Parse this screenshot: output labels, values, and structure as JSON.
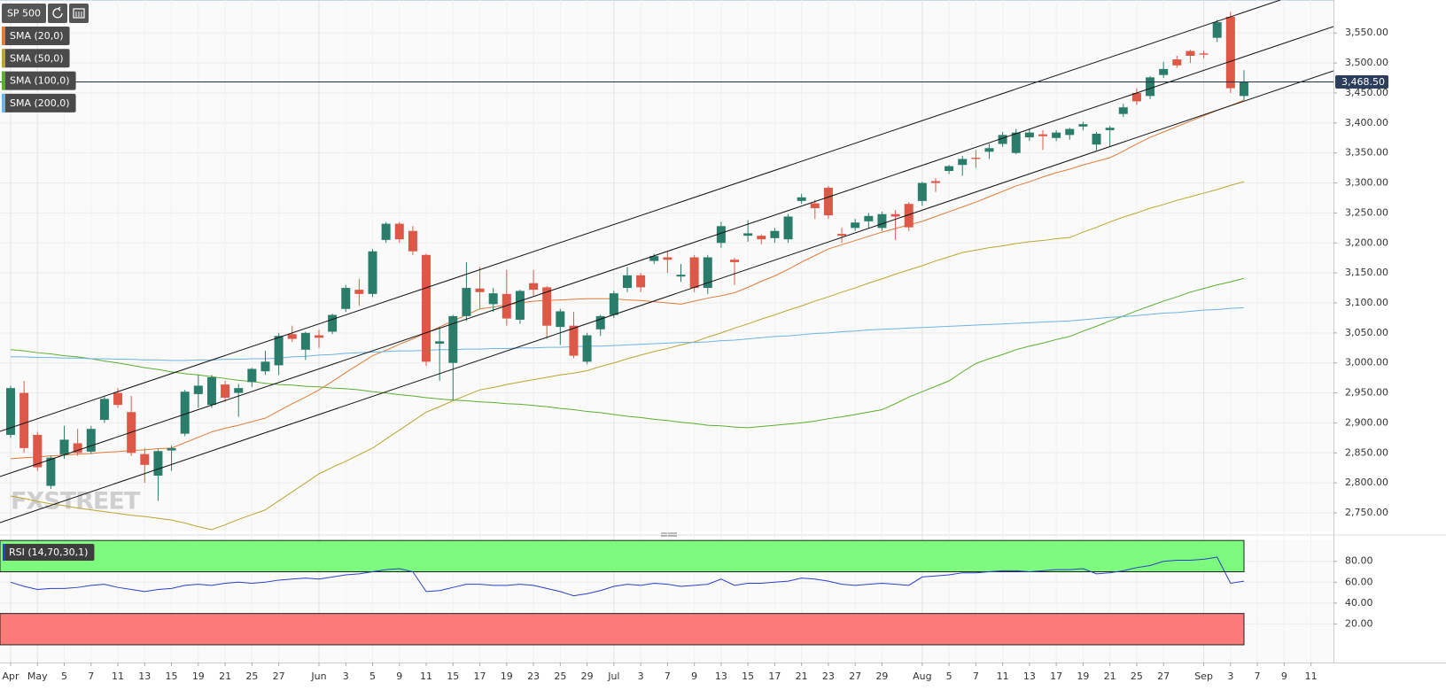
{
  "chart_data": {
    "type": "candlestick",
    "symbol": "SP 500",
    "watermark": "FXSTREET",
    "up_color": "#2b7d6b",
    "down_color": "#de5847",
    "categories": [
      "Apr",
      null,
      "May",
      null,
      "5",
      null,
      "7",
      null,
      "11",
      null,
      "13",
      null,
      "15",
      null,
      "19",
      null,
      "21",
      null,
      "25",
      null,
      "27",
      null,
      null,
      "Jun",
      null,
      "3",
      null,
      "5",
      null,
      "9",
      null,
      "11",
      null,
      "15",
      null,
      "17",
      null,
      "19",
      null,
      "23",
      null,
      "25",
      null,
      "29",
      null,
      "Jul",
      null,
      "3",
      null,
      "7",
      null,
      "9",
      null,
      "13",
      null,
      "15",
      null,
      "17",
      null,
      "21",
      null,
      "23",
      null,
      "27",
      null,
      "29",
      null,
      null,
      "Aug",
      null,
      "5",
      null,
      "7",
      null,
      "11",
      null,
      "13",
      null,
      "17",
      null,
      "19",
      null,
      "21",
      null,
      "25",
      null,
      "27",
      null,
      null,
      "Sep",
      null,
      "3",
      null,
      "7",
      null,
      "9",
      null,
      "11"
    ],
    "open": [
      2880,
      2950,
      2880,
      2795,
      2847,
      2866,
      2852,
      2905,
      2950,
      2918,
      2848,
      2812,
      2854,
      2882,
      2948,
      2930,
      2964,
      2950,
      2968,
      2986,
      2996,
      3048,
      3022,
      3046,
      3052,
      3090,
      3122,
      3115,
      3205,
      3232,
      3220,
      3180,
      3032,
      3000,
      3078,
      3124,
      3098,
      3115,
      3072,
      3133,
      3126,
      3060,
      3062,
      3002,
      3056,
      3080,
      3125,
      3146,
      3170,
      3176,
      3144,
      3176,
      3125,
      3200,
      3172,
      3212,
      3212,
      3208,
      3206,
      3270,
      3266,
      3292,
      3215,
      3225,
      3236,
      3225,
      3248,
      3265,
      3270,
      3303,
      3320,
      3330,
      3342,
      3352,
      3365,
      3350,
      3376,
      3381,
      3375,
      3380,
      3394,
      3364,
      3388,
      3415,
      3450,
      3445,
      3480,
      3506,
      3520,
      3516,
      3542,
      3577,
      3445,
      null,
      null,
      null,
      null,
      null
    ],
    "high": [
      2962,
      2970,
      2885,
      2845,
      2895,
      2890,
      2895,
      2945,
      2958,
      2945,
      2858,
      2856,
      2862,
      2955,
      2980,
      2980,
      2970,
      2965,
      2992,
      3020,
      3050,
      3062,
      3052,
      3055,
      3082,
      3130,
      3140,
      3190,
      3235,
      3235,
      3228,
      3182,
      3060,
      3080,
      3168,
      3160,
      3125,
      3155,
      3122,
      3155,
      3128,
      3090,
      3085,
      3050,
      3080,
      3120,
      3160,
      3150,
      3182,
      3185,
      3165,
      3180,
      3180,
      3235,
      3175,
      3238,
      3214,
      3225,
      3248,
      3282,
      3272,
      3295,
      3225,
      3240,
      3250,
      3252,
      3255,
      3268,
      3302,
      3308,
      3330,
      3345,
      3355,
      3365,
      3385,
      3390,
      3390,
      3388,
      3388,
      3392,
      3402,
      3385,
      3395,
      3432,
      3458,
      3478,
      3502,
      3512,
      3522,
      3520,
      3572,
      3585,
      3488,
      null,
      null,
      null,
      null,
      null
    ],
    "low": [
      2875,
      2850,
      2820,
      2790,
      2840,
      2845,
      2848,
      2900,
      2925,
      2845,
      2800,
      2770,
      2820,
      2878,
      2925,
      2925,
      2935,
      2910,
      2960,
      2980,
      2980,
      3035,
      3005,
      3025,
      3048,
      3085,
      3095,
      3110,
      3200,
      3200,
      3180,
      2995,
      2970,
      2938,
      3070,
      3090,
      3085,
      3062,
      3065,
      3112,
      3040,
      3030,
      3008,
      2998,
      3045,
      3075,
      3118,
      3118,
      3165,
      3150,
      3135,
      3118,
      3115,
      3192,
      3130,
      3202,
      3198,
      3200,
      3200,
      3265,
      3240,
      3240,
      3200,
      3220,
      3225,
      3220,
      3205,
      3220,
      3262,
      3285,
      3315,
      3312,
      3325,
      3340,
      3360,
      3348,
      3370,
      3355,
      3370,
      3372,
      3388,
      3355,
      3360,
      3410,
      3430,
      3440,
      3475,
      3492,
      3500,
      3508,
      3535,
      3450,
      3438,
      null,
      null,
      null,
      null,
      null
    ],
    "close": [
      2958,
      2858,
      2826,
      2842,
      2872,
      2850,
      2890,
      2940,
      2930,
      2850,
      2830,
      2853,
      2858,
      2952,
      2962,
      2976,
      2942,
      2958,
      2990,
      3002,
      3045,
      3040,
      3050,
      3042,
      3080,
      3125,
      3115,
      3186,
      3232,
      3206,
      3186,
      3002,
      3036,
      3078,
      3125,
      3118,
      3116,
      3074,
      3120,
      3122,
      3062,
      3086,
      3012,
      3046,
      3078,
      3116,
      3146,
      3126,
      3178,
      3172,
      3147,
      3125,
      3176,
      3228,
      3168,
      3216,
      3206,
      3220,
      3244,
      3276,
      3258,
      3246,
      3212,
      3234,
      3245,
      3248,
      3244,
      3226,
      3300,
      3300,
      3328,
      3340,
      3340,
      3358,
      3380,
      3384,
      3384,
      3378,
      3384,
      3390,
      3398,
      3382,
      3392,
      3426,
      3436,
      3476,
      3490,
      3496,
      3512,
      3514,
      3568,
      3458,
      3468.5,
      null,
      null,
      null,
      null,
      null
    ],
    "series": [
      {
        "name": "SMA (20,0)",
        "color": "#e07b39",
        "values": [
          2840,
          2842,
          2843,
          2845,
          2846,
          2848,
          2849,
          2851,
          2852,
          2854,
          2855,
          2857,
          2858,
          2867,
          2876,
          2885,
          2891,
          2896,
          2902,
          2908,
          2920,
          2932,
          2943,
          2955,
          2969,
          2984,
          2998,
          3012,
          3021,
          3031,
          3040,
          3050,
          3060,
          3070,
          3080,
          3090,
          3093,
          3097,
          3100,
          3103,
          3104,
          3105,
          3106,
          3107,
          3107,
          3107,
          3105,
          3104,
          3102,
          3100,
          3098,
          3103,
          3108,
          3112,
          3117,
          3126,
          3136,
          3145,
          3156,
          3168,
          3179,
          3190,
          3197,
          3204,
          3211,
          3218,
          3224,
          3230,
          3236,
          3244,
          3252,
          3260,
          3268,
          3277,
          3286,
          3295,
          3302,
          3310,
          3317,
          3323,
          3330,
          3336,
          3342,
          3353,
          3365,
          3376,
          3385,
          3394,
          3403,
          3412,
          3421,
          3429,
          3438,
          null,
          null,
          null,
          null,
          null
        ]
      },
      {
        "name": "SMA (50,0)",
        "color": "#b8a630",
        "values": [
          2778,
          2774,
          2769,
          2765,
          2762,
          2758,
          2755,
          2752,
          2749,
          2746,
          2744,
          2741,
          2738,
          2733,
          2727,
          2722,
          2730,
          2739,
          2747,
          2755,
          2770,
          2785,
          2800,
          2815,
          2826,
          2836,
          2847,
          2858,
          2873,
          2888,
          2903,
          2918,
          2927,
          2937,
          2946,
          2955,
          2959,
          2964,
          2968,
          2972,
          2976,
          2980,
          2983,
          2987,
          2994,
          3000,
          3007,
          3013,
          3019,
          3024,
          3030,
          3035,
          3043,
          3050,
          3058,
          3065,
          3073,
          3080,
          3088,
          3095,
          3103,
          3110,
          3118,
          3125,
          3133,
          3140,
          3148,
          3155,
          3162,
          3170,
          3177,
          3184,
          3188,
          3192,
          3195,
          3199,
          3202,
          3204,
          3207,
          3209,
          3218,
          3226,
          3235,
          3243,
          3250,
          3258,
          3264,
          3271,
          3277,
          3283,
          3289,
          3296,
          3302,
          null,
          null,
          null,
          null,
          null
        ]
      },
      {
        "name": "SMA (100,0)",
        "color": "#5cae2e",
        "values": [
          3022,
          3020,
          3017,
          3015,
          3012,
          3010,
          3007,
          3003,
          3000,
          2996,
          2992,
          2989,
          2985,
          2982,
          2980,
          2977,
          2974,
          2971,
          2969,
          2966,
          2964,
          2963,
          2961,
          2960,
          2958,
          2957,
          2955,
          2952,
          2950,
          2947,
          2945,
          2942,
          2940,
          2938,
          2937,
          2935,
          2934,
          2932,
          2931,
          2929,
          2927,
          2924,
          2922,
          2919,
          2917,
          2914,
          2911,
          2909,
          2906,
          2904,
          2901,
          2899,
          2896,
          2895,
          2893,
          2892,
          2894,
          2896,
          2898,
          2900,
          2903,
          2907,
          2910,
          2914,
          2918,
          2922,
          2932,
          2943,
          2952,
          2961,
          2970,
          2985,
          2999,
          3007,
          3014,
          3022,
          3028,
          3033,
          3039,
          3044,
          3053,
          3061,
          3070,
          3078,
          3087,
          3095,
          3103,
          3110,
          3118,
          3124,
          3130,
          3135,
          3141,
          null,
          null,
          null,
          null,
          null
        ]
      },
      {
        "name": "SMA (200,0)",
        "color": "#6cb4e4",
        "values": [
          3010,
          3010,
          3009,
          3009,
          3008,
          3008,
          3007,
          3007,
          3006,
          3006,
          3005,
          3005,
          3004,
          3004,
          3005,
          3005,
          3006,
          3006,
          3007,
          3007,
          3008,
          3010,
          3011,
          3013,
          3014,
          3016,
          3017,
          3018,
          3019,
          3020,
          3020,
          3021,
          3022,
          3022,
          3023,
          3023,
          3024,
          3024,
          3025,
          3025,
          3026,
          3026,
          3027,
          3028,
          3028,
          3029,
          3030,
          3031,
          3032,
          3033,
          3034,
          3034,
          3035,
          3037,
          3038,
          3040,
          3042,
          3044,
          3045,
          3047,
          3049,
          3050,
          3052,
          3053,
          3055,
          3056,
          3057,
          3058,
          3059,
          3060,
          3061,
          3062,
          3063,
          3064,
          3065,
          3066,
          3067,
          3068,
          3069,
          3070,
          3072,
          3074,
          3076,
          3077,
          3079,
          3081,
          3083,
          3084,
          3086,
          3088,
          3089,
          3091,
          3092,
          null,
          null,
          null,
          null,
          null
        ]
      }
    ],
    "ylim": [
      2719,
      3605
    ],
    "yticks": [
      {
        "value": 2750,
        "label": "2,750.00"
      },
      {
        "value": 2800,
        "label": "2,800.00"
      },
      {
        "value": 2850,
        "label": "2,850.00"
      },
      {
        "value": 2900,
        "label": "2,900.00"
      },
      {
        "value": 2950,
        "label": "2,950.00"
      },
      {
        "value": 3000,
        "label": "3,000.00"
      },
      {
        "value": 3050,
        "label": "3,050.00"
      },
      {
        "value": 3100,
        "label": "3,100.00"
      },
      {
        "value": 3150,
        "label": "3,150.00"
      },
      {
        "value": 3200,
        "label": "3,200.00"
      },
      {
        "value": 3250,
        "label": "3,250.00"
      },
      {
        "value": 3300,
        "label": "3,300.00"
      },
      {
        "value": 3350,
        "label": "3,350.00"
      },
      {
        "value": 3400,
        "label": "3,400.00"
      },
      {
        "value": 3450,
        "label": "3,450.00"
      },
      {
        "value": 3500,
        "label": "3,500.00"
      },
      {
        "value": 3550,
        "label": "3,550.00"
      }
    ],
    "last_price": {
      "value": 3468.5,
      "label": "3,468.50"
    },
    "grid": true,
    "rsi": {
      "name": "RSI (14,70,30,1)",
      "color": "#2a3fc4",
      "overbought_zone": [
        70,
        100
      ],
      "overbought_color": "#7dfa7d",
      "oversold_zone": [
        0,
        30
      ],
      "oversold_color": "#fb7b7b",
      "ylim": [
        -17,
        101
      ],
      "yticks": [
        {
          "value": 20,
          "label": "20.00"
        },
        {
          "value": 40,
          "label": "40.00"
        },
        {
          "value": 60,
          "label": "60.00"
        },
        {
          "value": 80,
          "label": "80.00"
        }
      ],
      "values": [
        60,
        56,
        53,
        54,
        54,
        55,
        57,
        58,
        55,
        53,
        51,
        53,
        54,
        57,
        58,
        57,
        59,
        60,
        59,
        60,
        62,
        63,
        64,
        63,
        65,
        67,
        68,
        70,
        72,
        73,
        70,
        51,
        52,
        55,
        58,
        58,
        57,
        57,
        58,
        57,
        54,
        51,
        47,
        49,
        52,
        56,
        58,
        57,
        59,
        58,
        56,
        57,
        58,
        63,
        57,
        59,
        59,
        60,
        61,
        64,
        63,
        61,
        58,
        57,
        58,
        59,
        58,
        57,
        65,
        66,
        67,
        69,
        69,
        70,
        71,
        71,
        70,
        71,
        72,
        72,
        73,
        68,
        69,
        71,
        74,
        76,
        80,
        81,
        81,
        82,
        84,
        59,
        61,
        null,
        null,
        null,
        null,
        null
      ]
    }
  }
}
